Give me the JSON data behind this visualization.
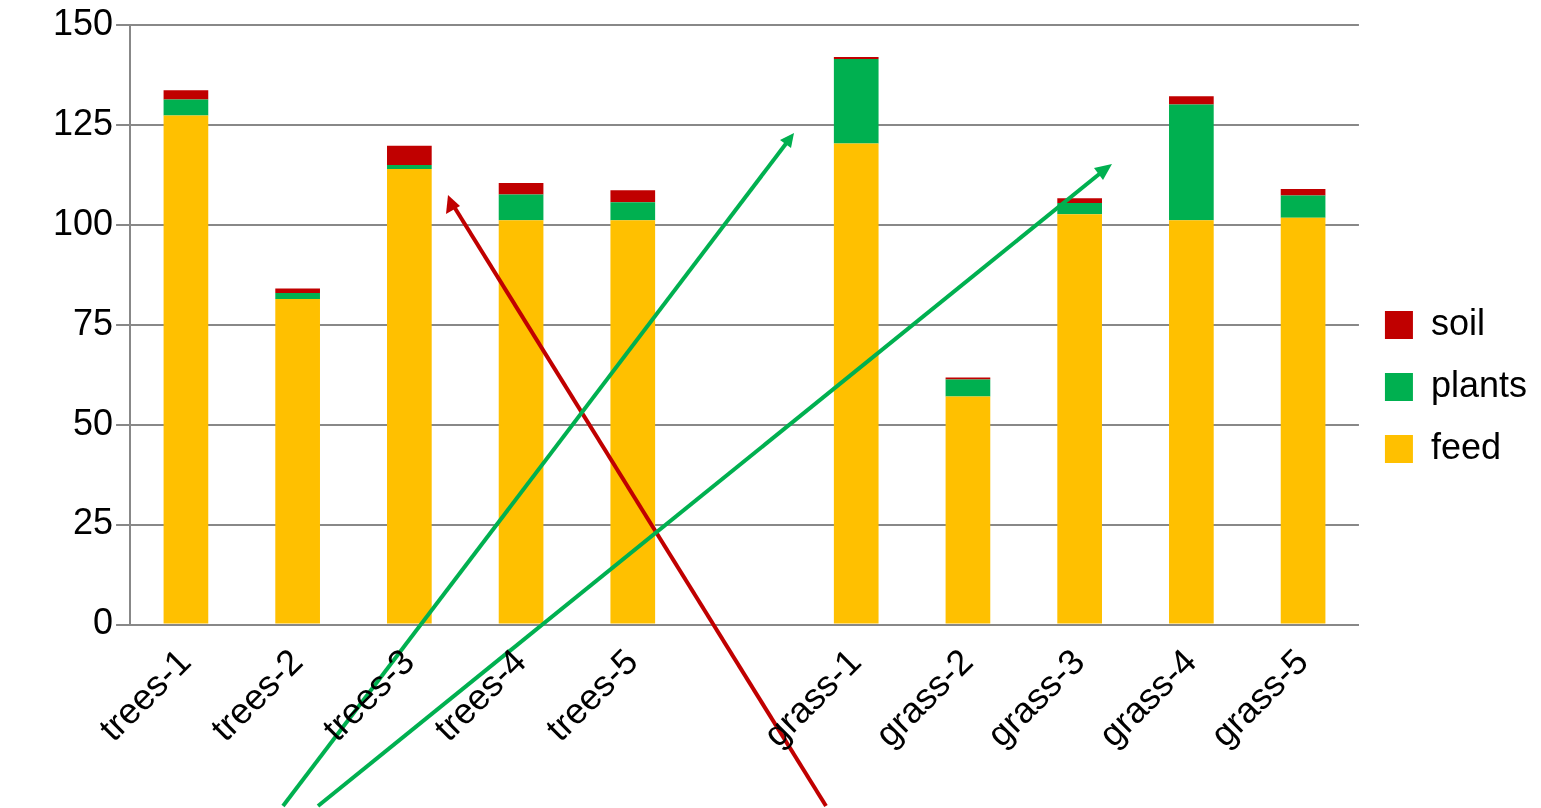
{
  "chart_data": {
    "type": "bar",
    "stacked": true,
    "categories": [
      "trees-1",
      "trees-2",
      "trees-3",
      "trees-4",
      "trees-5",
      null,
      "grass-1",
      "grass-2",
      "grass-3",
      "grass-4",
      "grass-5"
    ],
    "series": [
      {
        "name": "feed",
        "color": "#ffc000",
        "values": [
          127.3,
          81.4,
          113.9,
          101.1,
          101.1,
          null,
          120.3,
          57.0,
          102.6,
          101.1,
          101.7
        ]
      },
      {
        "name": "plants",
        "color": "#00b050",
        "values": [
          4.0,
          1.5,
          1.0,
          6.4,
          4.5,
          null,
          21.1,
          4.3,
          2.8,
          28.9,
          5.6
        ]
      },
      {
        "name": "soil",
        "color": "#c00000",
        "values": [
          2.3,
          1.1,
          4.8,
          2.9,
          3.0,
          null,
          0.5,
          0.5,
          1.2,
          2.1,
          1.6
        ]
      }
    ],
    "ylim": [
      0,
      150
    ],
    "yticks": [
      0,
      25,
      50,
      75,
      100,
      125,
      150
    ],
    "grid": "y",
    "legend": "right"
  }
}
